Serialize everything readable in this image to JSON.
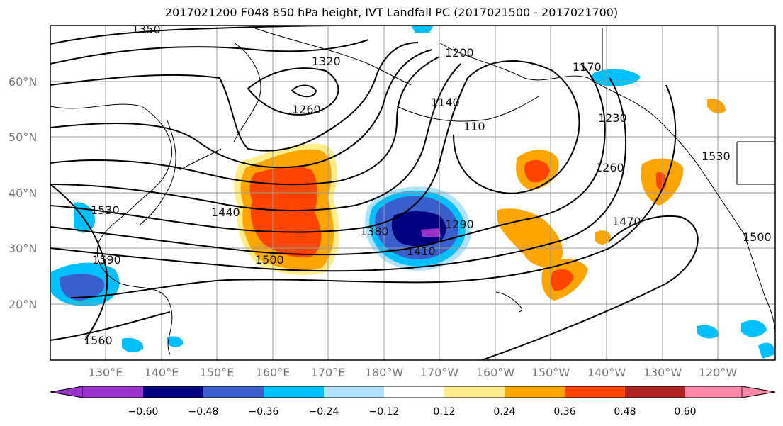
{
  "title": "2017021200 F048 850 hPa height, IVT Landfall PC (2017021500 - 2017021700)",
  "x_tick_labels": [
    "130°E",
    "140°E",
    "150°E",
    "160°E",
    "170°E",
    "180°W",
    "170°W",
    "160°W",
    "150°W",
    "140°W",
    "130°W",
    "120°W"
  ],
  "y_tick_labels": [
    "60°N",
    "50°N",
    "40°N",
    "30°N",
    "20°N"
  ],
  "colorbar": {
    "tick_labels": [
      "−0.60",
      "−0.48",
      "−0.36",
      "−0.24",
      "−0.12",
      "0.12",
      "0.24",
      "0.36",
      "0.48",
      "0.60"
    ],
    "colors": [
      "#9933cc",
      "#000080",
      "#3a5fcd",
      "#00bfff",
      "#b0e2ff",
      "#ffffff",
      "#ffec8b",
      "#ffa500",
      "#ff4500",
      "#b22222",
      "#ff88aa"
    ]
  },
  "contour_labels": [
    "1350",
    "1320",
    "1260",
    "1200",
    "1170",
    "1140",
    "110",
    "1230",
    "1260",
    "1530",
    "1440",
    "1380",
    "1410",
    "1290",
    "1500",
    "1470",
    "1530",
    "1590",
    "1560",
    "1500"
  ]
}
